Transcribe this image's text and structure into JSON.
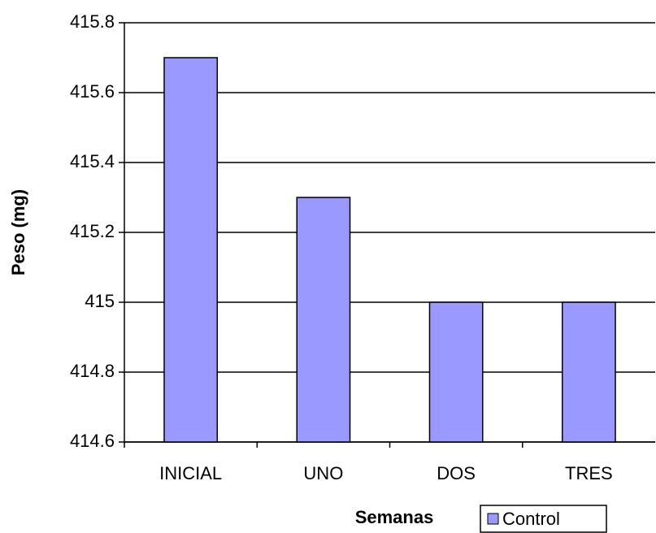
{
  "chart_data": {
    "type": "bar",
    "x_label": "Semanas",
    "y_label": "Peso (mg)",
    "categories": [
      "INICIAL",
      "UNO",
      "DOS",
      "TRES"
    ],
    "series": [
      {
        "name": "Control",
        "color": "#9999ff",
        "values": [
          415.7,
          415.3,
          415.0,
          415.0
        ]
      }
    ],
    "ylim": [
      414.6,
      415.8
    ],
    "yticks": [
      414.6,
      414.8,
      415,
      415.2,
      415.4,
      415.6,
      415.8
    ],
    "grid": true,
    "legend": "bottom"
  }
}
